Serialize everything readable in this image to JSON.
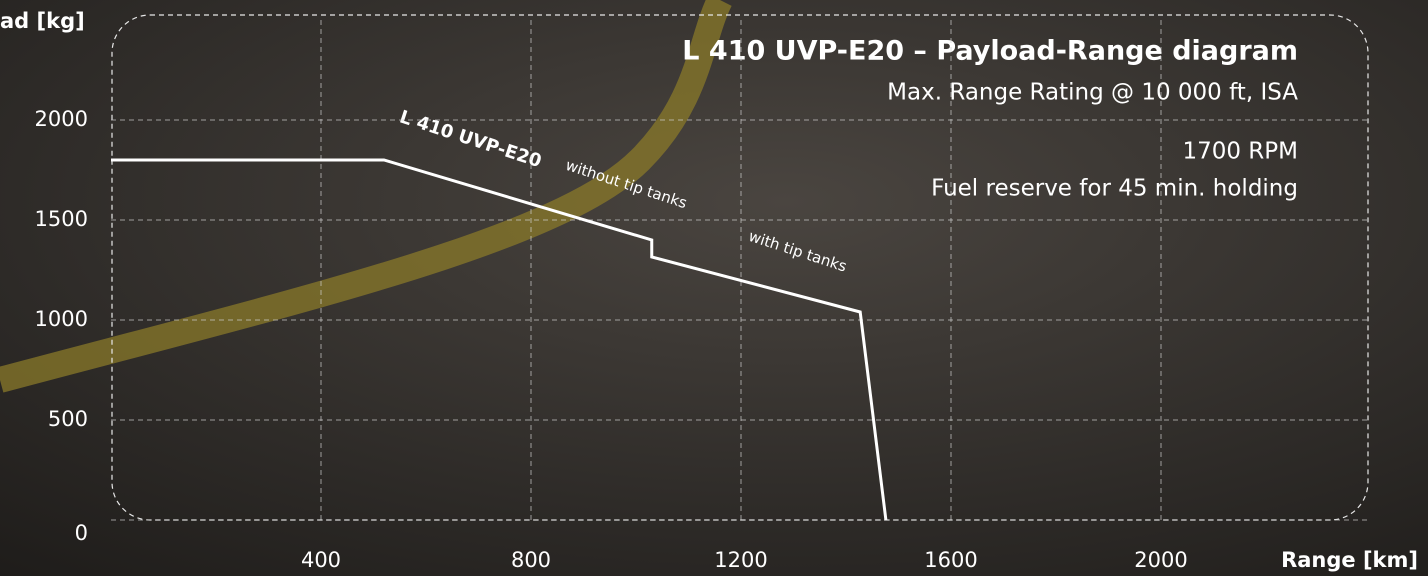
{
  "chart_data": {
    "type": "line",
    "title": "L 410 UVP-E20 – Payload-Range diagram",
    "subtitle": "Max. Range Rating @ 10 000 ft, ISA",
    "notes": [
      "1700 RPM",
      "Fuel reserve for 45 min. holding"
    ],
    "x_label": "Range [km]",
    "y_label": "ad [kg]",
    "x": [
      0,
      520,
      1030,
      1030,
      1427,
      1476
    ],
    "series": [
      {
        "name": "L 410 UVP-E20",
        "color": "#ffffff",
        "values": [
          1800,
          1800,
          1400,
          1315,
          1040,
          0
        ]
      }
    ],
    "annotations": [
      "without tip tanks",
      "with tip tanks"
    ],
    "xlim": [
      0,
      2400
    ],
    "ylim": [
      0,
      2500
    ],
    "xticks": [
      400,
      800,
      1200,
      1600,
      2000
    ],
    "yticks": [
      0,
      500,
      1000,
      1500,
      2000
    ],
    "grid": true
  }
}
